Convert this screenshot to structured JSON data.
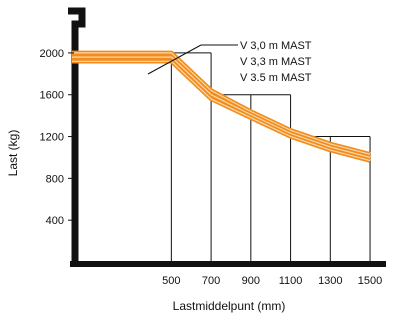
{
  "colors": {
    "curve_fill": "#f28c1e",
    "curve_highlight": "#fcd9a8",
    "grid": "#111111",
    "axis": "#111111"
  },
  "chart_data": {
    "type": "line",
    "title": "",
    "xlabel": "Lastmiddelpunt (mm)",
    "ylabel": "Last (kg)",
    "x_ticks": [
      500,
      700,
      900,
      1100,
      1300,
      1500
    ],
    "y_ticks": [
      400,
      800,
      1200,
      1600,
      2000
    ],
    "x_tick_labels": [
      "500",
      "700",
      "900",
      "1100",
      "1300",
      "1500"
    ],
    "y_tick_labels": [
      "400",
      "800",
      "1200",
      "1600",
      "2000"
    ],
    "xlim": [
      0,
      1540
    ],
    "ylim": [
      0,
      2200
    ],
    "grid_cells": [
      {
        "x0": 500,
        "x1": 700,
        "y": 2000
      },
      {
        "x0": 700,
        "x1": 1100,
        "y": 1600
      },
      {
        "x0": 1100,
        "x1": 1500,
        "y": 1200
      }
    ],
    "series": [
      {
        "name": "V 3,0 m MAST",
        "x": [
          0,
          500,
          700,
          900,
          1100,
          1300,
          1500
        ],
        "y": [
          2000,
          2000,
          1640,
          1440,
          1260,
          1130,
          1030
        ]
      },
      {
        "name": "V 3,3 m MAST",
        "x": [
          0,
          500,
          700,
          900,
          1100,
          1300,
          1500
        ],
        "y": [
          1960,
          1960,
          1600,
          1410,
          1230,
          1100,
          1000
        ]
      },
      {
        "name": "V 3.5 m MAST",
        "x": [
          0,
          500,
          700,
          900,
          1100,
          1300,
          1500
        ],
        "y": [
          1920,
          1920,
          1560,
          1380,
          1200,
          1070,
          970
        ]
      }
    ],
    "legend": [
      "V 3,0 m MAST",
      "V 3,3 m MAST",
      "V 3.5 m MAST"
    ],
    "legend_position": "top-right"
  }
}
